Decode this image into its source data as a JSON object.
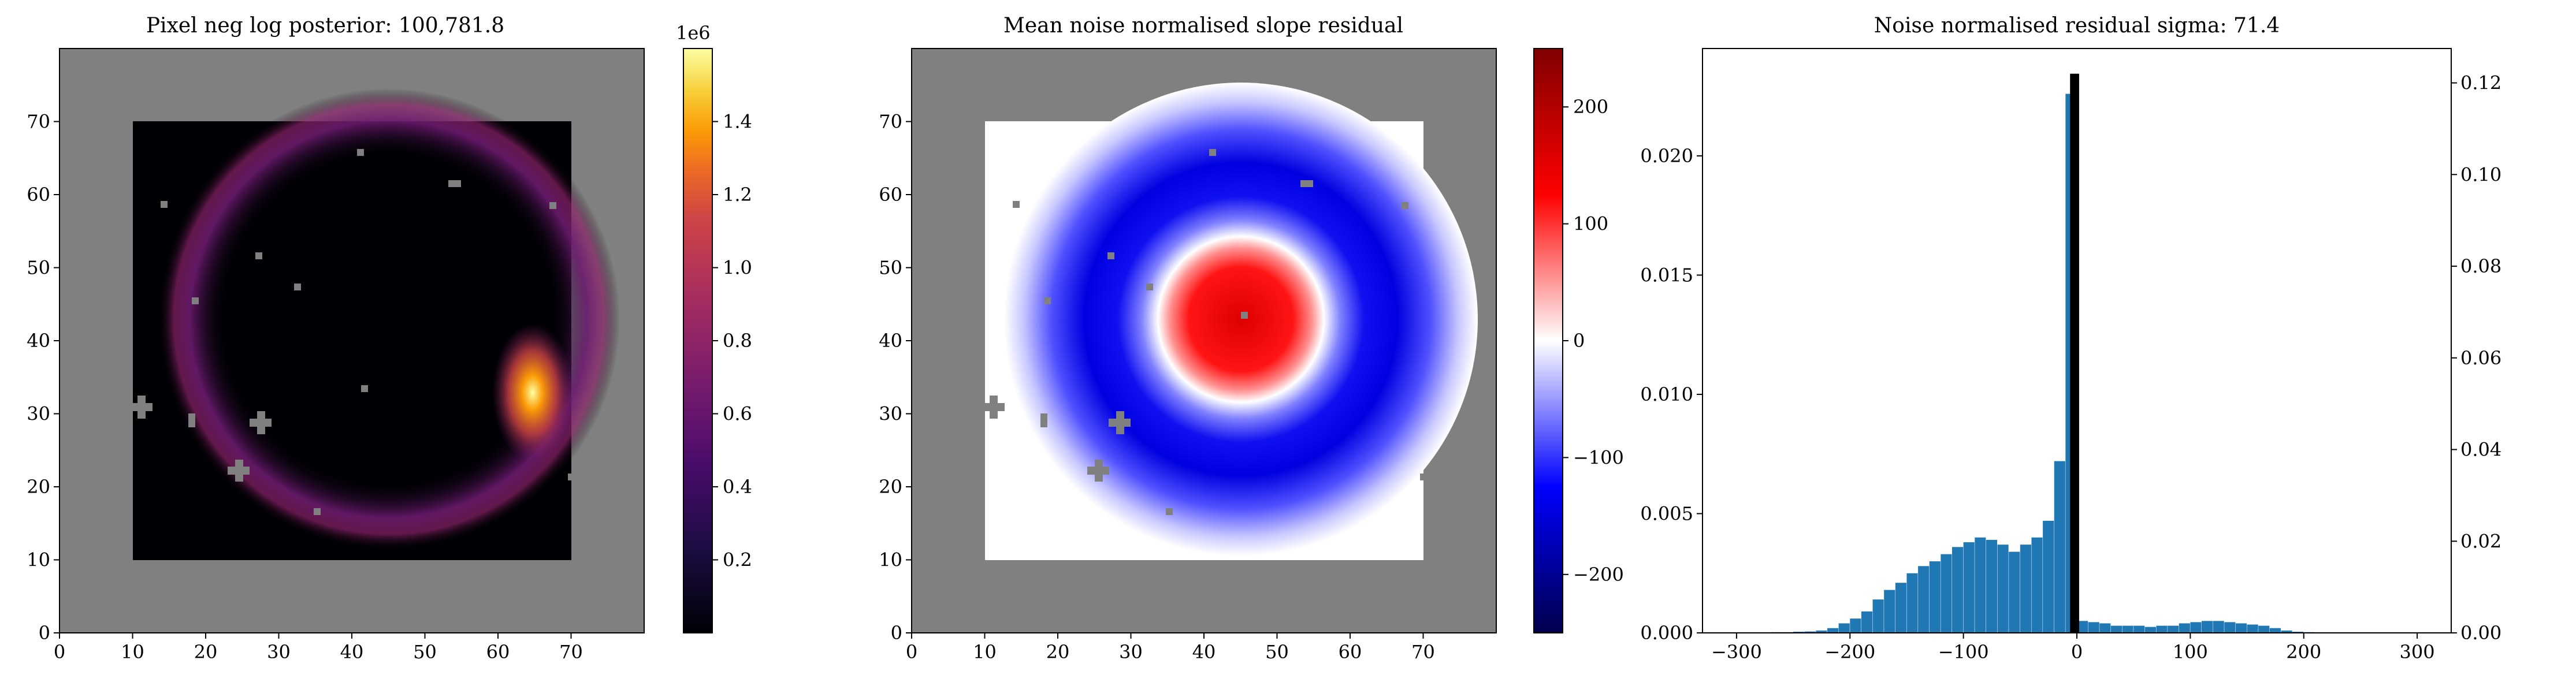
{
  "figure": {
    "panels": [
      {
        "title": "Pixel neg log posterior: 100,781.8",
        "colorbar": {
          "ticks": [
            "0.2",
            "0.4",
            "0.6",
            "0.8",
            "1.0",
            "1.2",
            "1.4"
          ],
          "exponent": "1e6",
          "colormap": "inferno"
        },
        "x_ticks": [
          "0",
          "10",
          "20",
          "30",
          "40",
          "50",
          "60",
          "70"
        ],
        "y_ticks": [
          "0",
          "10",
          "20",
          "30",
          "40",
          "50",
          "60",
          "70"
        ]
      },
      {
        "title": "Mean noise normalised slope residual",
        "colorbar": {
          "ticks": [
            "200",
            "100",
            "0",
            "−100",
            "−200"
          ],
          "colormap": "seismic"
        },
        "x_ticks": [
          "0",
          "10",
          "20",
          "30",
          "40",
          "50",
          "60",
          "70"
        ],
        "y_ticks": [
          "0",
          "10",
          "20",
          "30",
          "40",
          "50",
          "60",
          "70"
        ]
      },
      {
        "title": "Noise normalised residual sigma: 71.4",
        "x_ticks": [
          "−300",
          "−200",
          "−100",
          "0",
          "100",
          "200",
          "300"
        ],
        "y_left_ticks": [
          "0.000",
          "0.005",
          "0.010",
          "0.015",
          "0.020"
        ],
        "y_right_ticks": [
          "0.00",
          "0.02",
          "0.04",
          "0.06",
          "0.08",
          "0.10",
          "0.12"
        ]
      }
    ]
  },
  "chart_data": [
    {
      "type": "heatmap",
      "title": "Pixel neg log posterior: 100,781.8",
      "xlim": [
        0,
        80
      ],
      "ylim": [
        0,
        80
      ],
      "data_extent": [
        10,
        70
      ],
      "masked_color": "#808080",
      "colormap": "inferno",
      "clim": [
        0,
        1600000.0
      ],
      "description_values": {
        "ring_radius": 28,
        "ring_center": [
          45,
          43
        ],
        "peak_location": [
          65,
          32
        ],
        "peak_value": 1550000.0
      }
    },
    {
      "type": "heatmap",
      "title": "Mean noise normalised slope residual",
      "xlim": [
        0,
        80
      ],
      "ylim": [
        0,
        80
      ],
      "data_extent": [
        10,
        70
      ],
      "masked_color": "#808080",
      "colormap": "seismic",
      "clim": [
        -250,
        250
      ],
      "description_values": {
        "center": [
          45,
          43
        ],
        "core_value": 220,
        "ring_value": -180
      }
    },
    {
      "type": "bar",
      "title": "Noise normalised residual sigma: 71.4",
      "xlim": [
        -330,
        330
      ],
      "ylim": [
        0,
        0.0245
      ],
      "y2lim": [
        0,
        0.1275
      ],
      "bin_width": 10,
      "bins": [
        {
          "x": -300,
          "v": 2e-05
        },
        {
          "x": -290,
          "v": 2e-05
        },
        {
          "x": -280,
          "v": 2e-05
        },
        {
          "x": -270,
          "v": 3e-05
        },
        {
          "x": -260,
          "v": 3e-05
        },
        {
          "x": -250,
          "v": 5e-05
        },
        {
          "x": -240,
          "v": 6e-05
        },
        {
          "x": -230,
          "v": 0.0001
        },
        {
          "x": -220,
          "v": 0.0002
        },
        {
          "x": -210,
          "v": 0.0004
        },
        {
          "x": -200,
          "v": 0.0006
        },
        {
          "x": -190,
          "v": 0.0009
        },
        {
          "x": -180,
          "v": 0.0014
        },
        {
          "x": -170,
          "v": 0.0018
        },
        {
          "x": -160,
          "v": 0.0021
        },
        {
          "x": -150,
          "v": 0.0025
        },
        {
          "x": -140,
          "v": 0.0028
        },
        {
          "x": -130,
          "v": 0.003
        },
        {
          "x": -120,
          "v": 0.0033
        },
        {
          "x": -110,
          "v": 0.0036
        },
        {
          "x": -100,
          "v": 0.0038
        },
        {
          "x": -90,
          "v": 0.004
        },
        {
          "x": -80,
          "v": 0.0039
        },
        {
          "x": -70,
          "v": 0.0037
        },
        {
          "x": -60,
          "v": 0.0034
        },
        {
          "x": -50,
          "v": 0.0037
        },
        {
          "x": -40,
          "v": 0.004
        },
        {
          "x": -30,
          "v": 0.0047
        },
        {
          "x": -20,
          "v": 0.0072
        },
        {
          "x": -10,
          "v": 0.0226
        },
        {
          "x": 0,
          "v": 0.0005
        },
        {
          "x": 10,
          "v": 0.00045
        },
        {
          "x": 20,
          "v": 0.0004
        },
        {
          "x": 30,
          "v": 0.0003
        },
        {
          "x": 40,
          "v": 0.0003
        },
        {
          "x": 50,
          "v": 0.0003
        },
        {
          "x": 60,
          "v": 0.00025
        },
        {
          "x": 70,
          "v": 0.0003
        },
        {
          "x": 80,
          "v": 0.0003
        },
        {
          "x": 90,
          "v": 0.0004
        },
        {
          "x": 100,
          "v": 0.00045
        },
        {
          "x": 110,
          "v": 0.0005
        },
        {
          "x": 120,
          "v": 0.0005
        },
        {
          "x": 130,
          "v": 0.00045
        },
        {
          "x": 140,
          "v": 0.0004
        },
        {
          "x": 150,
          "v": 0.00035
        },
        {
          "x": 160,
          "v": 0.0003
        },
        {
          "x": 170,
          "v": 0.0002
        },
        {
          "x": 180,
          "v": 0.0001
        },
        {
          "x": 190,
          "v": 5e-05
        },
        {
          "x": 200,
          "v": 3e-05
        },
        {
          "x": 210,
          "v": 2e-05
        },
        {
          "x": 220,
          "v": 2e-05
        },
        {
          "x": 230,
          "v": 1e-05
        },
        {
          "x": 240,
          "v": 1e-05
        },
        {
          "x": 250,
          "v": 1e-05
        },
        {
          "x": 260,
          "v": 1e-05
        },
        {
          "x": 270,
          "v": 1e-05
        },
        {
          "x": 280,
          "v": 1e-05
        },
        {
          "x": 290,
          "v": 1e-05
        }
      ],
      "overlay_bar": {
        "x": [
          -6,
          2
        ],
        "value_right_axis": 0.122,
        "color": "#000000"
      },
      "bar_color": "#1f77b4"
    }
  ]
}
